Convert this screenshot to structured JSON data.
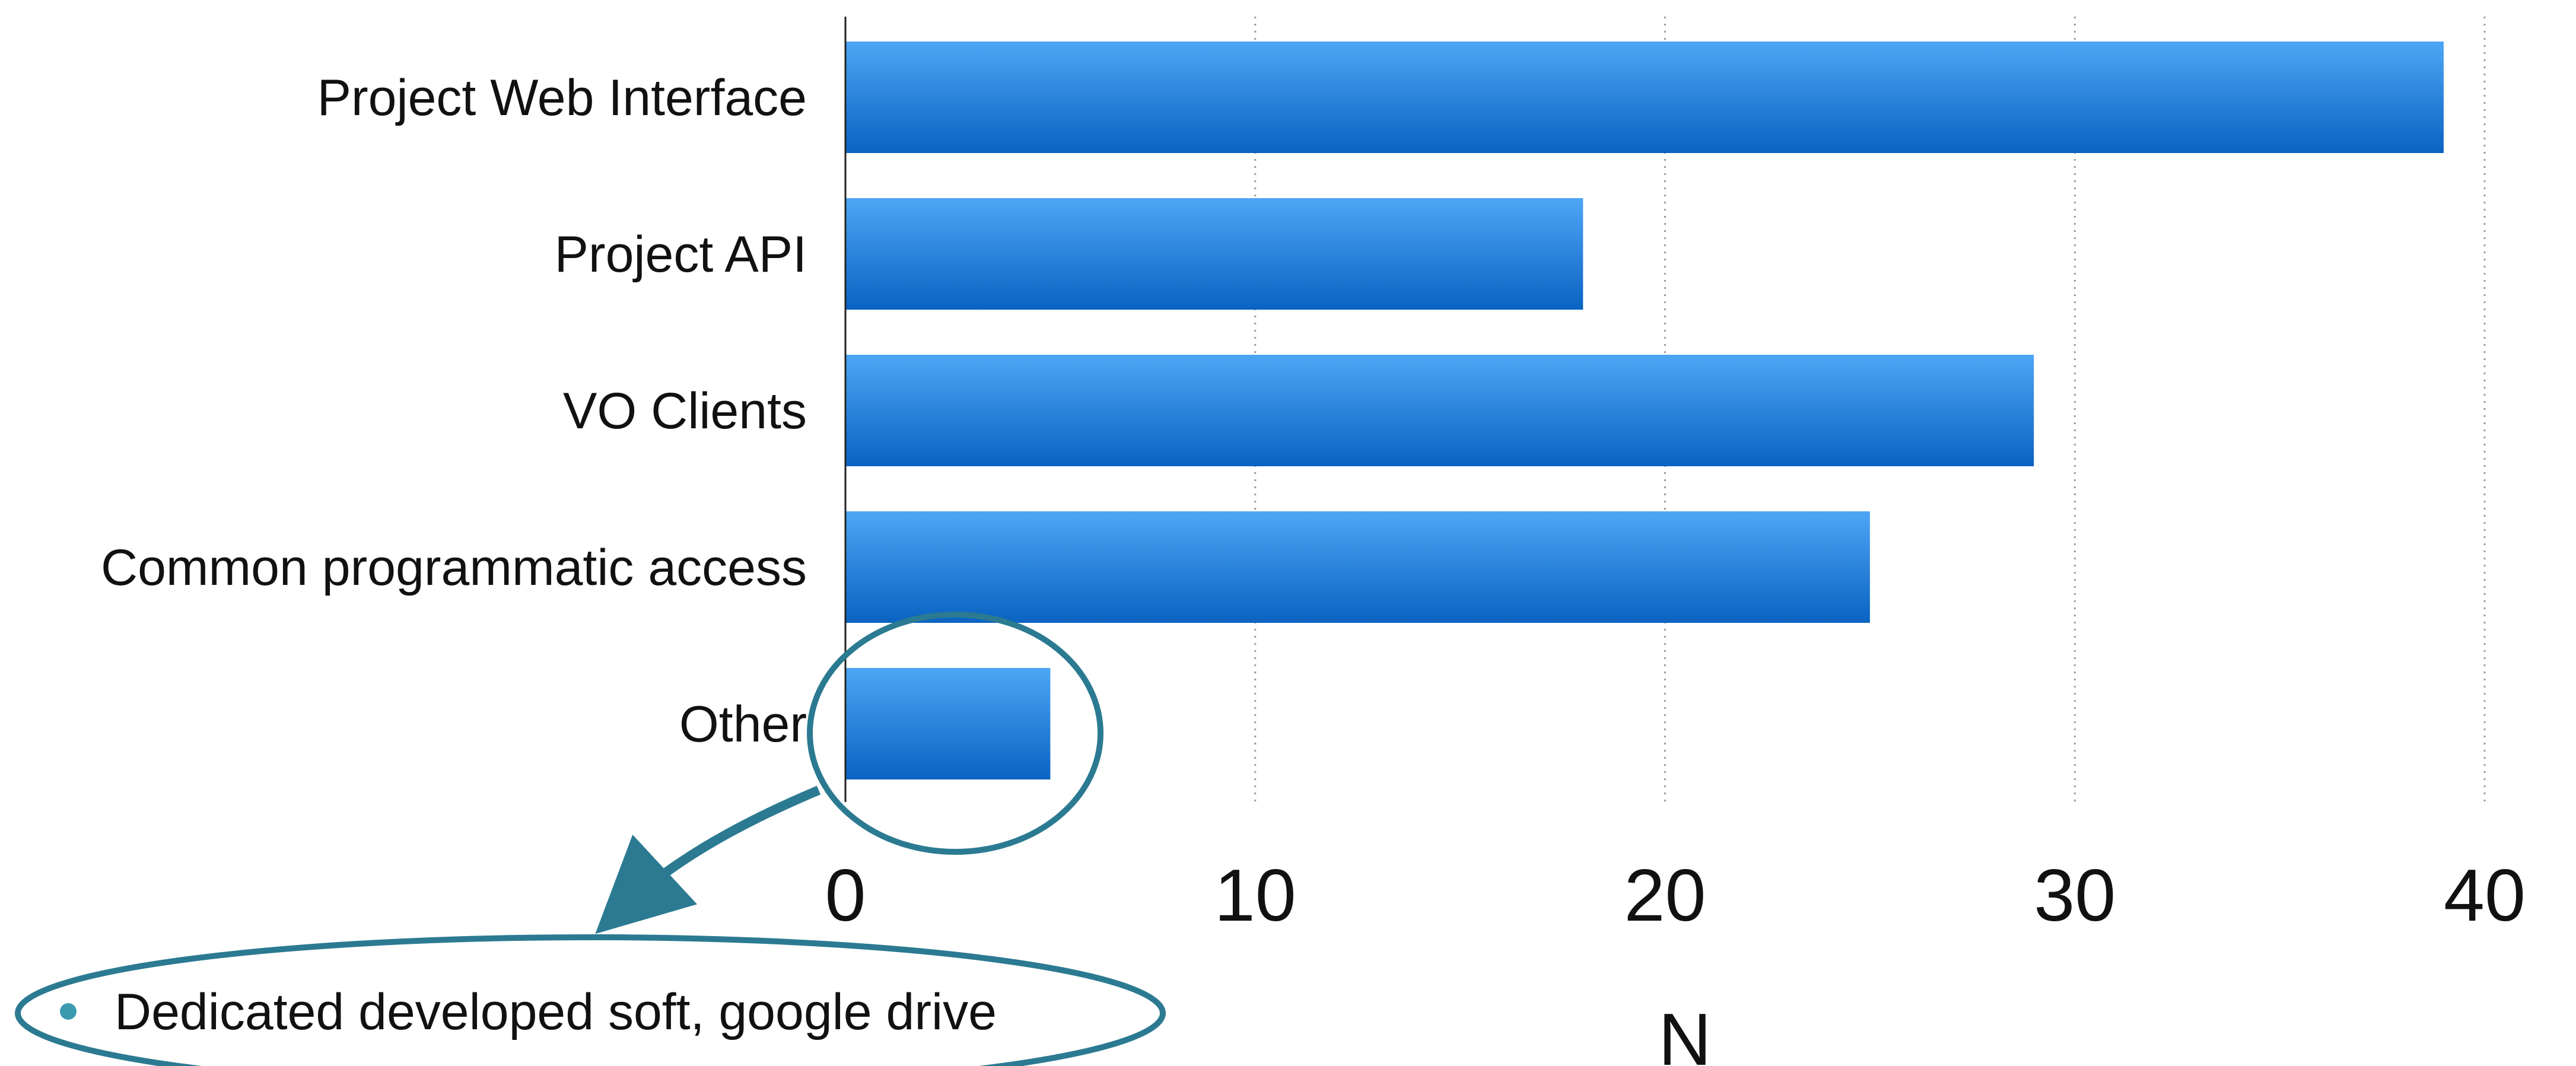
{
  "chart_data": {
    "type": "bar",
    "orientation": "horizontal",
    "categories": [
      "Project Web Interface",
      "Project API",
      "VO Clients",
      "Common programmatic access",
      "Other"
    ],
    "values": [
      39,
      18,
      29,
      25,
      5
    ],
    "xlabel": "N",
    "ylabel": "",
    "xlim": [
      0,
      40
    ],
    "xticks": [
      "0",
      "10",
      "20",
      "30",
      "40"
    ],
    "grid": "vertical dotted",
    "colors": {
      "bar_top": "#4da6f5",
      "bar_bottom": "#0a63c2",
      "annotation": "#2b7a92",
      "bullet": "#3c9ab0"
    },
    "annotation": {
      "highlight": "Other",
      "bullets": [
        "Dedicated developed soft, google drive"
      ]
    }
  }
}
